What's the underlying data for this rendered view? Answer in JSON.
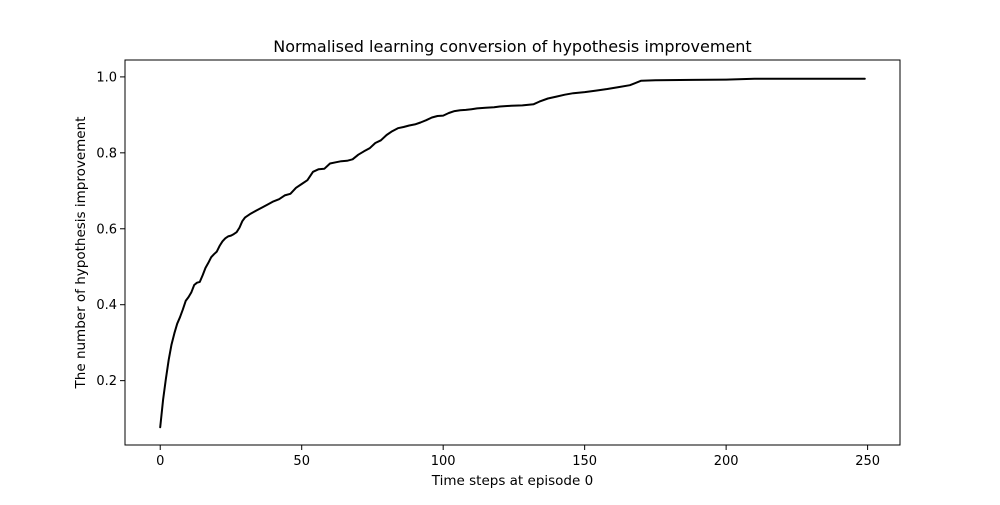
{
  "chart_data": {
    "type": "line",
    "title": "Normalised learning conversion of hypothesis improvement",
    "xlabel": "Time steps at episode 0",
    "ylabel": "The number of hypothesis improvement",
    "xlim": [
      -12.45,
      261.45
    ],
    "ylim": [
      0.0305,
      1.0445
    ],
    "xticks": [
      0,
      50,
      100,
      150,
      200,
      250
    ],
    "yticks": [
      0.2,
      0.4,
      0.6,
      0.8,
      1.0
    ],
    "xtick_labels": [
      "0",
      "50",
      "100",
      "150",
      "200",
      "250"
    ],
    "ytick_labels": [
      "0.2",
      "0.4",
      "0.6",
      "0.8",
      "1.0"
    ],
    "grid": false,
    "line_color": "#000000",
    "series": [
      {
        "points": [
          [
            0,
            0.077
          ],
          [
            1,
            0.15
          ],
          [
            2,
            0.205
          ],
          [
            3,
            0.255
          ],
          [
            4,
            0.295
          ],
          [
            5,
            0.325
          ],
          [
            6,
            0.35
          ],
          [
            7,
            0.367
          ],
          [
            8,
            0.388
          ],
          [
            9,
            0.41
          ],
          [
            10,
            0.42
          ],
          [
            11,
            0.433
          ],
          [
            12,
            0.452
          ],
          [
            13,
            0.458
          ],
          [
            14,
            0.46
          ],
          [
            15,
            0.478
          ],
          [
            16,
            0.497
          ],
          [
            17,
            0.51
          ],
          [
            18,
            0.525
          ],
          [
            19,
            0.533
          ],
          [
            20,
            0.54
          ],
          [
            21,
            0.555
          ],
          [
            22,
            0.567
          ],
          [
            23,
            0.575
          ],
          [
            24,
            0.58
          ],
          [
            25,
            0.582
          ],
          [
            26,
            0.586
          ],
          [
            27,
            0.591
          ],
          [
            28,
            0.603
          ],
          [
            29,
            0.62
          ],
          [
            30,
            0.63
          ],
          [
            32,
            0.64
          ],
          [
            34,
            0.648
          ],
          [
            36,
            0.656
          ],
          [
            38,
            0.664
          ],
          [
            40,
            0.672
          ],
          [
            42,
            0.678
          ],
          [
            44,
            0.688
          ],
          [
            46,
            0.692
          ],
          [
            48,
            0.708
          ],
          [
            50,
            0.718
          ],
          [
            52,
            0.728
          ],
          [
            54,
            0.75
          ],
          [
            56,
            0.757
          ],
          [
            58,
            0.758
          ],
          [
            60,
            0.772
          ],
          [
            62,
            0.775
          ],
          [
            64,
            0.778
          ],
          [
            66,
            0.779
          ],
          [
            68,
            0.783
          ],
          [
            70,
            0.795
          ],
          [
            72,
            0.804
          ],
          [
            74,
            0.812
          ],
          [
            76,
            0.826
          ],
          [
            78,
            0.833
          ],
          [
            80,
            0.847
          ],
          [
            82,
            0.857
          ],
          [
            84,
            0.865
          ],
          [
            86,
            0.868
          ],
          [
            88,
            0.872
          ],
          [
            90,
            0.875
          ],
          [
            92,
            0.88
          ],
          [
            94,
            0.886
          ],
          [
            96,
            0.893
          ],
          [
            98,
            0.897
          ],
          [
            100,
            0.898
          ],
          [
            102,
            0.905
          ],
          [
            104,
            0.91
          ],
          [
            106,
            0.912
          ],
          [
            108,
            0.913
          ],
          [
            110,
            0.915
          ],
          [
            112,
            0.917
          ],
          [
            115,
            0.919
          ],
          [
            118,
            0.92
          ],
          [
            120,
            0.922
          ],
          [
            124,
            0.924
          ],
          [
            128,
            0.925
          ],
          [
            132,
            0.928
          ],
          [
            134,
            0.935
          ],
          [
            137,
            0.943
          ],
          [
            140,
            0.948
          ],
          [
            143,
            0.953
          ],
          [
            146,
            0.957
          ],
          [
            150,
            0.96
          ],
          [
            154,
            0.964
          ],
          [
            158,
            0.968
          ],
          [
            162,
            0.973
          ],
          [
            166,
            0.978
          ],
          [
            170,
            0.99
          ],
          [
            175,
            0.991
          ],
          [
            188,
            0.992
          ],
          [
            200,
            0.993
          ],
          [
            210,
            0.995
          ],
          [
            220,
            0.995
          ],
          [
            230,
            0.995
          ],
          [
            240,
            0.995
          ],
          [
            249,
            0.995
          ]
        ]
      }
    ]
  }
}
